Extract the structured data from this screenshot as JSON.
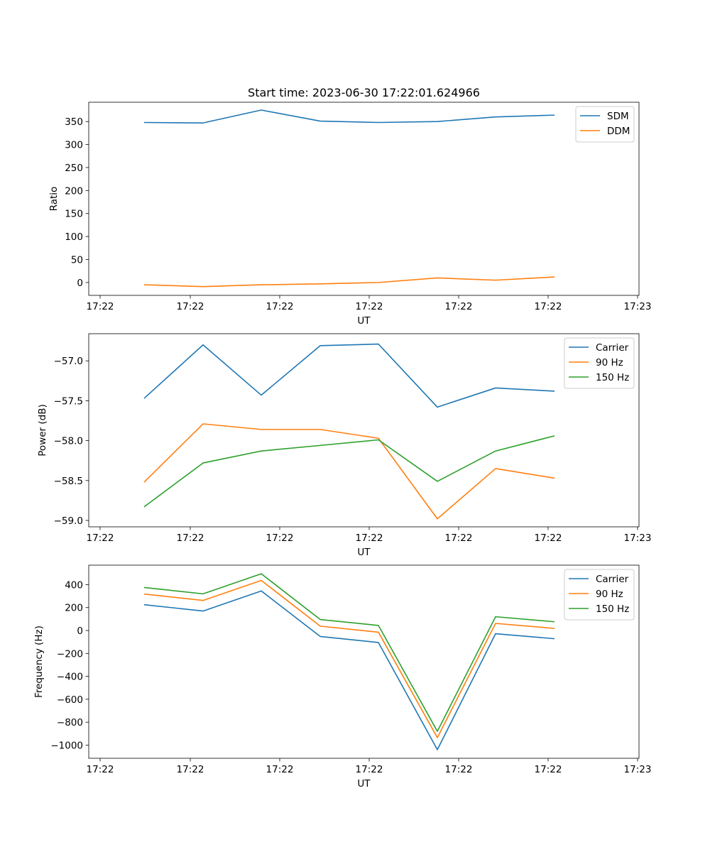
{
  "figure": {
    "title": "Start time: 2023-06-30 17:22:01.624966"
  },
  "chart_data": [
    {
      "type": "line",
      "ylabel": "Ratio",
      "xlabel": "UT",
      "x_tick_labels": [
        "17:22",
        "17:22",
        "17:22",
        "17:22",
        "17:22",
        "17:22",
        "17:23"
      ],
      "y_ticks": [
        0,
        50,
        100,
        150,
        200,
        250,
        300,
        350
      ],
      "ylim": [
        -28,
        392
      ],
      "legend_position": "top-right",
      "series": [
        {
          "name": "SDM",
          "color": "#1f77b4",
          "values": [
            348,
            347,
            375,
            351,
            348,
            350,
            360,
            364
          ]
        },
        {
          "name": "DDM",
          "color": "#ff7f0e",
          "values": [
            -5,
            -9,
            -5,
            -3,
            0,
            10,
            5,
            12
          ]
        }
      ]
    },
    {
      "type": "line",
      "ylabel": "Power (dB)",
      "xlabel": "UT",
      "x_tick_labels": [
        "17:22",
        "17:22",
        "17:22",
        "17:22",
        "17:22",
        "17:22",
        "17:23"
      ],
      "y_ticks": [
        -59.0,
        -58.5,
        -58.0,
        -57.5,
        -57.0
      ],
      "ylim": [
        -59.08,
        -56.66
      ],
      "legend_position": "top-right",
      "series": [
        {
          "name": "Carrier",
          "color": "#1f77b4",
          "values": [
            -57.47,
            -56.8,
            -57.43,
            -56.81,
            -56.79,
            -57.58,
            -57.34,
            -57.38
          ]
        },
        {
          "name": "90 Hz",
          "color": "#ff7f0e",
          "values": [
            -58.52,
            -57.79,
            -57.86,
            -57.86,
            -57.97,
            -58.98,
            -58.35,
            -58.47
          ]
        },
        {
          "name": "150 Hz",
          "color": "#2ca02c",
          "values": [
            -58.83,
            -58.28,
            -58.13,
            -58.06,
            -57.99,
            -58.51,
            -58.13,
            -57.94
          ]
        }
      ]
    },
    {
      "type": "line",
      "ylabel": "Frequency (Hz)",
      "xlabel": "UT",
      "x_tick_labels": [
        "17:22",
        "17:22",
        "17:22",
        "17:22",
        "17:22",
        "17:22",
        "17:23"
      ],
      "y_ticks": [
        -1000,
        -800,
        -600,
        -400,
        -200,
        0,
        200,
        400
      ],
      "ylim": [
        -1115,
        570
      ],
      "legend_position": "top-right",
      "series": [
        {
          "name": "Carrier",
          "color": "#1f77b4",
          "values": [
            225,
            170,
            345,
            -52,
            -105,
            -1040,
            -28,
            -72
          ]
        },
        {
          "name": "90 Hz",
          "color": "#ff7f0e",
          "values": [
            318,
            262,
            437,
            38,
            -15,
            -935,
            62,
            18
          ]
        },
        {
          "name": "150 Hz",
          "color": "#2ca02c",
          "values": [
            375,
            320,
            495,
            96,
            44,
            -880,
            120,
            76
          ]
        }
      ]
    }
  ]
}
